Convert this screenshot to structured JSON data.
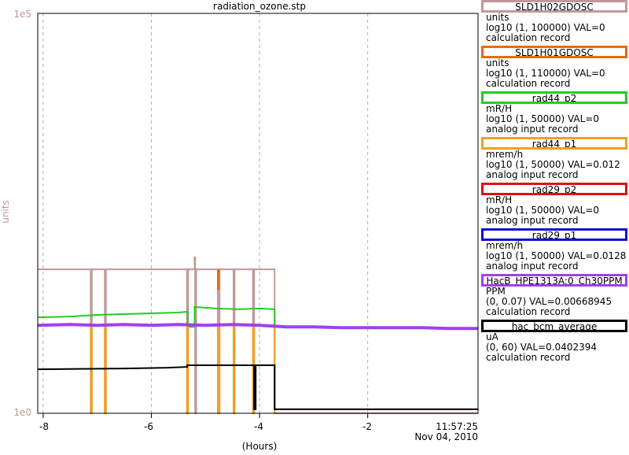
{
  "plot": {
    "title": "radiation_ozone.stp",
    "y_axis_label": "units",
    "y_max_label": "1e5",
    "y_min_label": "1e0",
    "x_axis_label": "(Hours)",
    "x_ticks": [
      "-8",
      "-6",
      "-4",
      "-2"
    ],
    "end_time": "11:57:25",
    "end_date": "Nov 04, 2010"
  },
  "legend": [
    {
      "name": "SLD1H02GDOSC",
      "unit": "units",
      "range": "log10 (1, 100000) VAL=0",
      "type": "calculation record",
      "color": "#c09898"
    },
    {
      "name": "SLD1H01GDOSC",
      "unit": "units",
      "range": "log10 (1, 110000) VAL=0",
      "type": "calculation record",
      "color": "#e86a10"
    },
    {
      "name": "rad44_p2",
      "unit": "mR/H",
      "range": "log10 (1, 50000) VAL=0",
      "type": "analog input record",
      "color": "#22cc22"
    },
    {
      "name": "rad44_p1",
      "unit": "mrem/h",
      "range": "log10 (1, 50000) VAL=0.012",
      "type": "analog input record",
      "color": "#f0a020"
    },
    {
      "name": "rad29_p2",
      "unit": "mR/H",
      "range": "log10 (1, 50000) VAL=0",
      "type": "analog input record",
      "color": "#e01010"
    },
    {
      "name": "rad29_p1",
      "unit": "mrem/h",
      "range": "log10 (1, 50000) VAL=0.0128",
      "type": "analog input record",
      "color": "#1010d0"
    },
    {
      "name": "HacB_HPE1313A:0_Ch30PPM",
      "unit": "PPM",
      "range": "(0, 0.07) VAL=0.00668945",
      "type": "calculation record",
      "color": "#a040f0"
    },
    {
      "name": "hac_bcm_average",
      "unit": "uA",
      "range": "(0, 60) VAL=0.0402394",
      "type": "calculation record",
      "color": "#000000"
    }
  ],
  "chart_data": {
    "type": "line",
    "xlim": [
      -8.1,
      0.04
    ],
    "ylim_log10": [
      0,
      5
    ],
    "grid": true,
    "x_tick_values": [
      -8,
      -6,
      -4,
      -2
    ],
    "series": [
      {
        "name": "SLD1H02GDOSC",
        "color": "#c09898",
        "points": [
          [
            -8.1,
            1.8
          ],
          [
            -7.12,
            1.8
          ],
          [
            -7.12,
            0
          ],
          [
            -7.1,
            0
          ],
          [
            -7.1,
            1.8
          ],
          [
            -6.86,
            1.8
          ],
          [
            -6.86,
            0
          ],
          [
            -6.84,
            0
          ],
          [
            -6.84,
            1.8
          ],
          [
            -5.34,
            1.8
          ],
          [
            -5.34,
            0
          ],
          [
            -5.32,
            0
          ],
          [
            -5.32,
            1.8
          ],
          [
            -5.2,
            1.8
          ],
          [
            -5.2,
            1.95
          ],
          [
            -5.19,
            1.95
          ],
          [
            -5.19,
            0
          ],
          [
            -5.17,
            0
          ],
          [
            -5.17,
            1.8
          ],
          [
            -4.77,
            1.8
          ],
          [
            -4.77,
            0
          ],
          [
            -4.74,
            0
          ],
          [
            -4.74,
            1.8
          ],
          [
            -4.48,
            1.8
          ],
          [
            -4.48,
            0
          ],
          [
            -4.46,
            0
          ],
          [
            -4.46,
            1.8
          ],
          [
            -4.12,
            1.8
          ],
          [
            -4.12,
            0
          ],
          [
            -4.1,
            0
          ],
          [
            -4.1,
            1.8
          ],
          [
            -3.72,
            1.8
          ],
          [
            -3.72,
            0
          ],
          [
            0.04,
            0
          ]
        ]
      },
      {
        "name": "SLD1H01GDOSC",
        "color": "#e86a10",
        "points": [
          [
            -4.77,
            1.8
          ],
          [
            -4.77,
            1.55
          ],
          [
            -4.75,
            1.55
          ],
          [
            -4.75,
            1.8
          ]
        ]
      },
      {
        "name": "rad44_p2",
        "color": "#22cc22",
        "points": [
          [
            -8.1,
            1.2
          ],
          [
            -7.5,
            1.21
          ],
          [
            -7.0,
            1.23
          ],
          [
            -6.5,
            1.24
          ],
          [
            -6.0,
            1.25
          ],
          [
            -5.5,
            1.26
          ],
          [
            -5.33,
            1.27
          ],
          [
            -5.33,
            1.08
          ],
          [
            -5.2,
            1.08
          ],
          [
            -5.2,
            1.33
          ],
          [
            -4.8,
            1.31
          ],
          [
            -4.4,
            1.3
          ],
          [
            -4.0,
            1.31
          ],
          [
            -3.72,
            1.3
          ],
          [
            -3.72,
            0
          ]
        ]
      },
      {
        "name": "rad44_p1",
        "color": "#f0a020",
        "points": [
          [
            -8.1,
            1.1
          ],
          [
            -7.12,
            1.1
          ],
          [
            -7.12,
            0
          ],
          [
            -7.1,
            0
          ],
          [
            -7.1,
            1.1
          ],
          [
            -6.86,
            1.1
          ],
          [
            -6.86,
            0
          ],
          [
            -6.84,
            0
          ],
          [
            -6.84,
            1.1
          ],
          [
            -5.34,
            1.1
          ],
          [
            -5.34,
            0
          ],
          [
            -5.32,
            0
          ],
          [
            -5.32,
            1.1
          ],
          [
            -4.77,
            1.1
          ],
          [
            -4.77,
            0
          ],
          [
            -4.74,
            0
          ],
          [
            -4.74,
            1.1
          ],
          [
            -4.48,
            1.1
          ],
          [
            -4.48,
            0
          ],
          [
            -4.46,
            0
          ],
          [
            -4.46,
            1.1
          ],
          [
            -4.12,
            1.1
          ],
          [
            -4.12,
            0
          ],
          [
            -4.1,
            0
          ],
          [
            -4.1,
            1.1
          ],
          [
            -3.72,
            1.1
          ],
          [
            -3.72,
            0
          ]
        ]
      },
      {
        "name": "rad29_p2",
        "color": "#e01010",
        "points": []
      },
      {
        "name": "rad29_p1",
        "color": "#1010d0",
        "points": []
      },
      {
        "name": "HacB_HPE1313A:0_Ch30PPM",
        "color": "#a040f0",
        "points": [
          [
            -8.1,
            1.1
          ],
          [
            -7.5,
            1.11
          ],
          [
            -7.0,
            1.1
          ],
          [
            -6.5,
            1.11
          ],
          [
            -6.0,
            1.1
          ],
          [
            -5.5,
            1.11
          ],
          [
            -5.0,
            1.1
          ],
          [
            -4.5,
            1.11
          ],
          [
            -4.0,
            1.1
          ],
          [
            -3.5,
            1.08
          ],
          [
            -3.0,
            1.08
          ],
          [
            -2.5,
            1.07
          ],
          [
            -2.0,
            1.07
          ],
          [
            -1.5,
            1.07
          ],
          [
            -1.0,
            1.07
          ],
          [
            -0.5,
            1.06
          ],
          [
            0.04,
            1.06
          ]
        ]
      },
      {
        "name": "hac_bcm_average",
        "color": "#000000",
        "points": [
          [
            -8.1,
            0.55
          ],
          [
            -6.5,
            0.56
          ],
          [
            -5.7,
            0.57
          ],
          [
            -5.34,
            0.58
          ],
          [
            -5.34,
            0.6
          ],
          [
            -4.8,
            0.6
          ],
          [
            -4.1,
            0.6
          ],
          [
            -4.1,
            0.05
          ],
          [
            -4.07,
            0.05
          ],
          [
            -4.07,
            0.6
          ],
          [
            -3.72,
            0.6
          ],
          [
            -3.72,
            0.05
          ],
          [
            0.04,
            0.05
          ]
        ]
      }
    ]
  }
}
